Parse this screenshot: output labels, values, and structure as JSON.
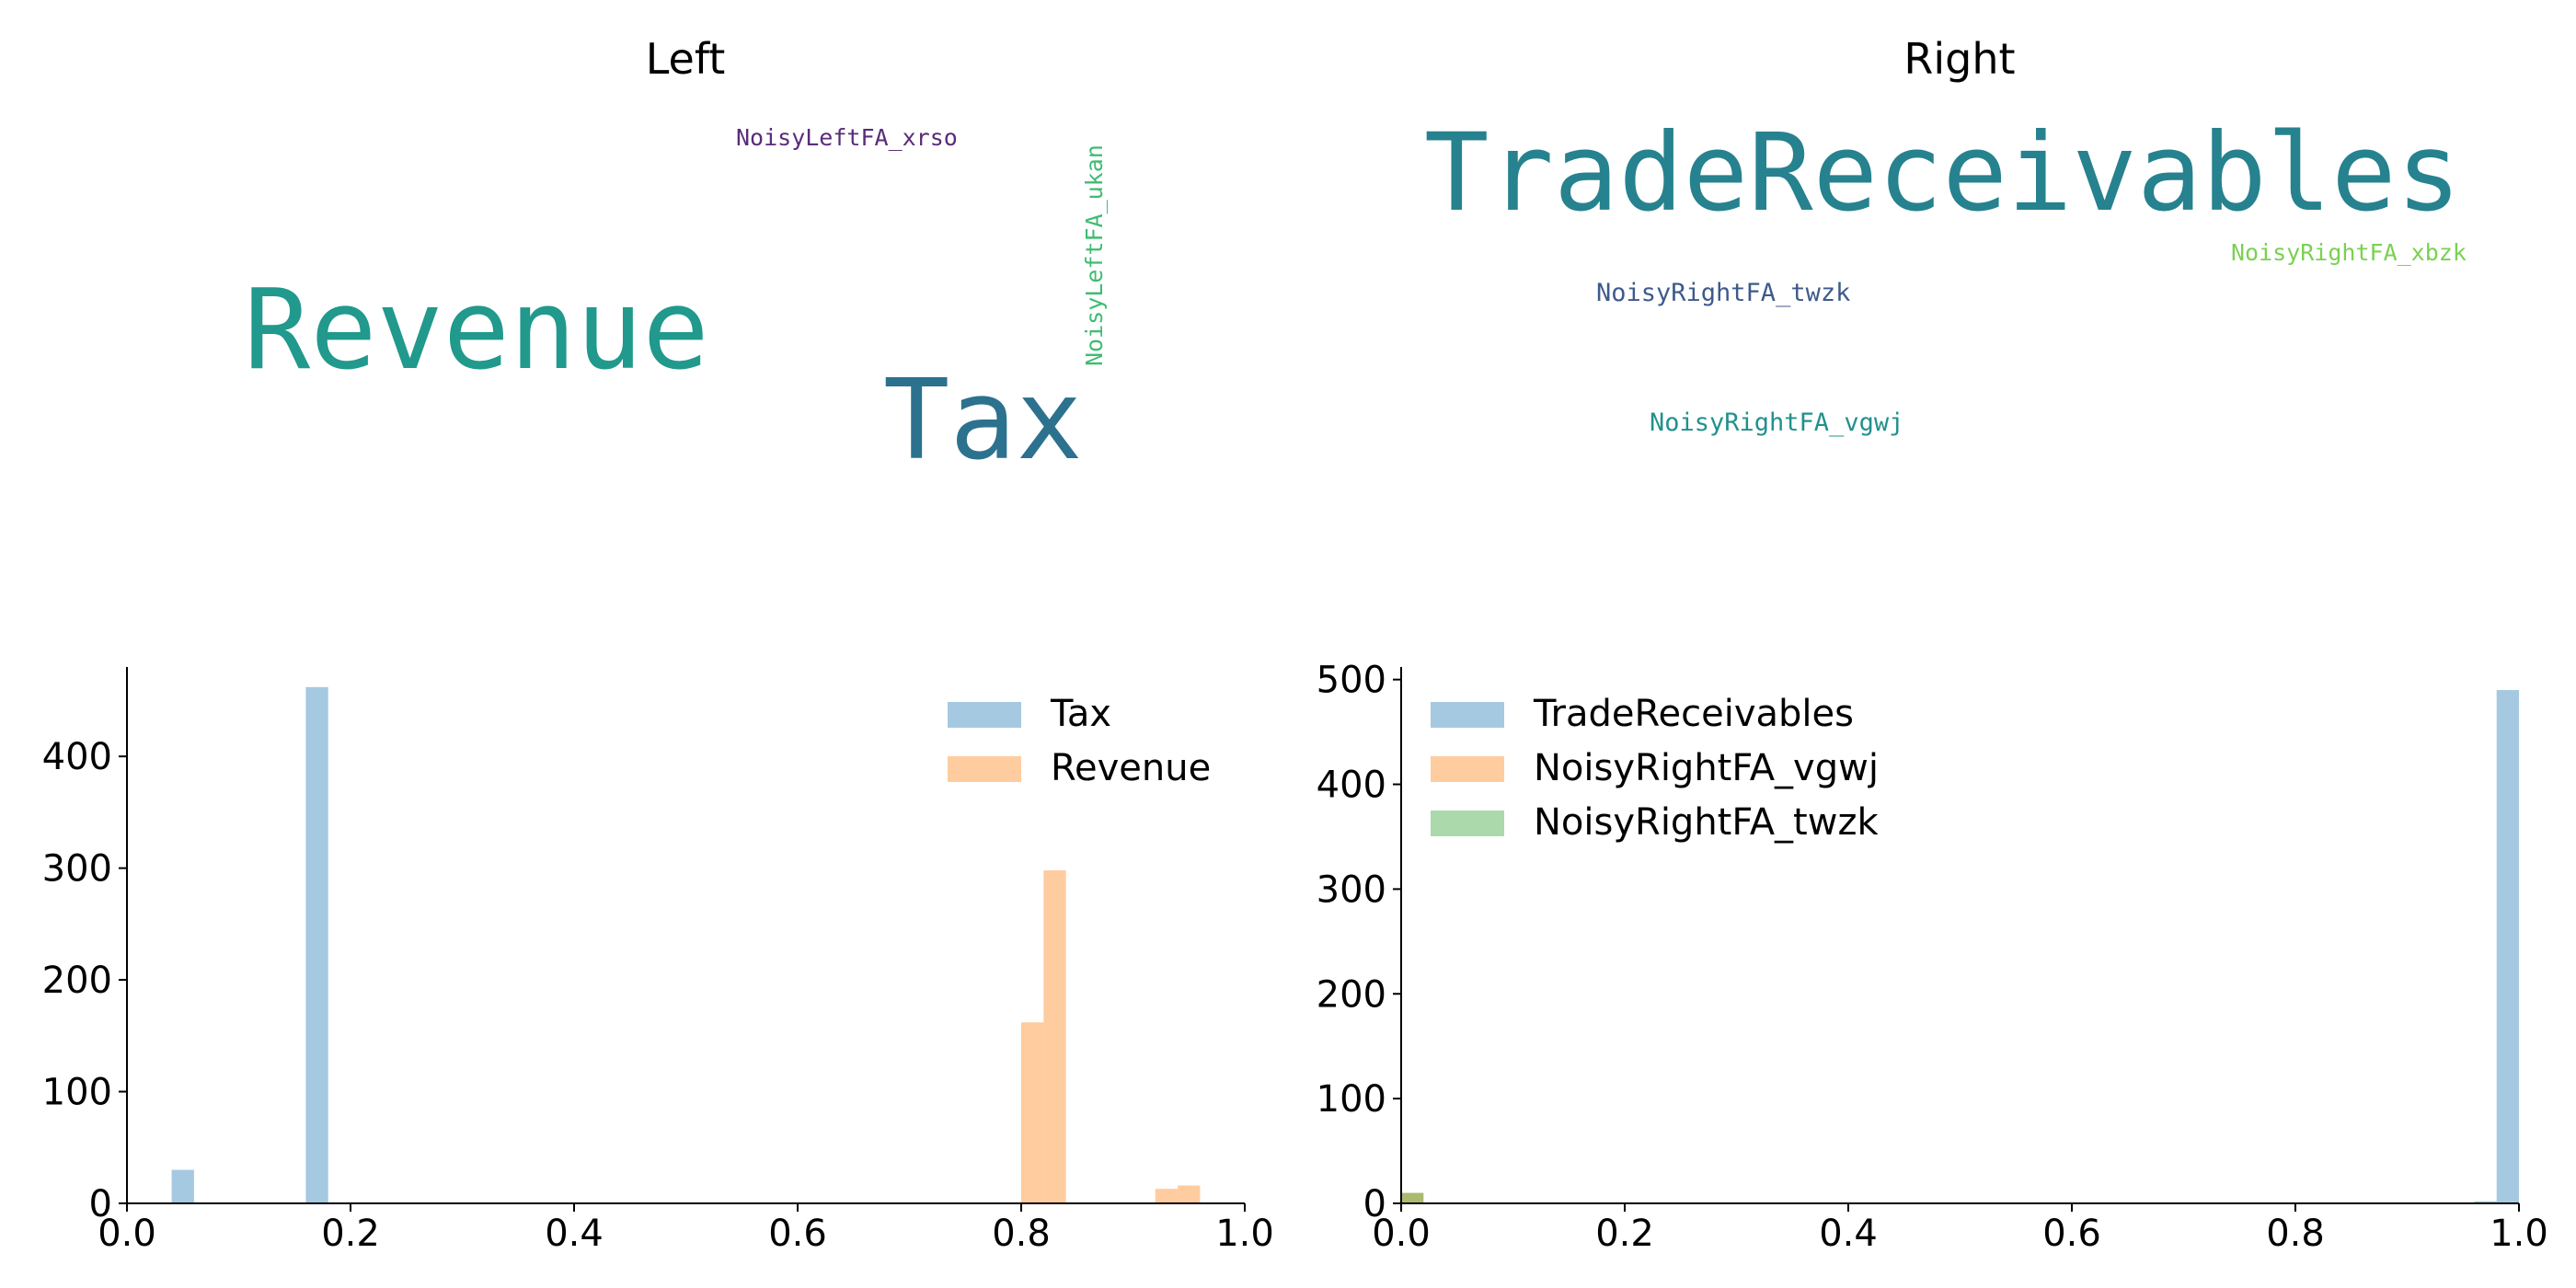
{
  "wordclouds": [
    {
      "title": "Left",
      "words": [
        {
          "text": "NoisyLeftFA_xrso",
          "color": "#5a2b7a",
          "size": "small",
          "vertical": false
        },
        {
          "text": "NoisyLeftFA_ukan",
          "color": "#3fbc73",
          "size": "small",
          "vertical": true
        },
        {
          "text": "Revenue",
          "color": "#21998c",
          "size": "large",
          "vertical": false
        },
        {
          "text": "Tax",
          "color": "#2c728e",
          "size": "large",
          "vertical": false
        }
      ]
    },
    {
      "title": "Right",
      "words": [
        {
          "text": "TradeReceivables",
          "color": "#26828e",
          "size": "large",
          "vertical": false
        },
        {
          "text": "NoisyRightFA_xbzk",
          "color": "#7ad151",
          "size": "small",
          "vertical": false
        },
        {
          "text": "NoisyRightFA_twzk",
          "color": "#3e5a8c",
          "size": "small",
          "vertical": false
        },
        {
          "text": "NoisyRightFA_vgwj",
          "color": "#21918c",
          "size": "small",
          "vertical": false
        }
      ]
    }
  ],
  "chart_data": [
    {
      "type": "bar",
      "subtype": "histogram",
      "xlim": [
        0.0,
        1.0
      ],
      "ylim": [
        0,
        480
      ],
      "xticks": [
        "0.0",
        "0.2",
        "0.4",
        "0.6",
        "0.8",
        "1.0"
      ],
      "yticks": [
        "0",
        "100",
        "200",
        "300",
        "400"
      ],
      "legend_position": "top-right",
      "series": [
        {
          "name": "Tax",
          "color": "#1f77b4",
          "opacity": 0.4,
          "bins": [
            [
              0.04,
              0.06,
              30
            ],
            [
              0.16,
              0.18,
              462
            ]
          ]
        },
        {
          "name": "Revenue",
          "color": "#ff7f0e",
          "opacity": 0.4,
          "bins": [
            [
              0.8,
              0.82,
              162
            ],
            [
              0.82,
              0.84,
              298
            ],
            [
              0.92,
              0.94,
              13
            ],
            [
              0.94,
              0.96,
              16
            ]
          ]
        }
      ]
    },
    {
      "type": "bar",
      "subtype": "histogram",
      "xlim": [
        0.0,
        1.0
      ],
      "ylim": [
        0,
        512
      ],
      "xticks": [
        "0.0",
        "0.2",
        "0.4",
        "0.6",
        "0.8",
        "1.0"
      ],
      "yticks": [
        "0",
        "100",
        "200",
        "300",
        "400",
        "500"
      ],
      "legend_position": "top-left",
      "series": [
        {
          "name": "TradeReceivables",
          "color": "#1f77b4",
          "opacity": 0.4,
          "bins": [
            [
              0.96,
              0.98,
              2
            ],
            [
              0.98,
              1.0,
              490
            ]
          ]
        },
        {
          "name": "NoisyRightFA_vgwj",
          "color": "#ff7f0e",
          "opacity": 0.4,
          "bins": [
            [
              0.0,
              0.02,
              10
            ]
          ]
        },
        {
          "name": "NoisyRightFA_twzk",
          "color": "#2ca02c",
          "opacity": 0.4,
          "bins": [
            [
              0.0,
              0.02,
              10
            ]
          ]
        }
      ]
    }
  ]
}
